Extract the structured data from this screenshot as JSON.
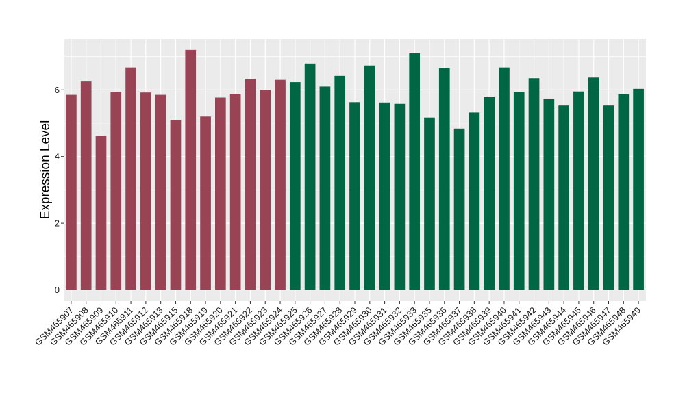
{
  "chart_data": {
    "type": "bar",
    "title": "",
    "xlabel": "",
    "ylabel": "Expression Level",
    "ylim": [
      0,
      7.5
    ],
    "yticks": [
      0,
      2,
      4,
      6
    ],
    "grid": true,
    "categories": [
      "GSM465907",
      "GSM465908",
      "GSM465909",
      "GSM465910",
      "GSM465911",
      "GSM465912",
      "GSM465913",
      "GSM465915",
      "GSM465918",
      "GSM465919",
      "GSM465920",
      "GSM465921",
      "GSM465922",
      "GSM465923",
      "GSM465924",
      "GSM465925",
      "GSM465926",
      "GSM465927",
      "GSM465928",
      "GSM465929",
      "GSM465930",
      "GSM465931",
      "GSM465932",
      "GSM465933",
      "GSM465935",
      "GSM465936",
      "GSM465937",
      "GSM465938",
      "GSM465939",
      "GSM465940",
      "GSM465941",
      "GSM465942",
      "GSM465943",
      "GSM465944",
      "GSM465945",
      "GSM465946",
      "GSM465947",
      "GSM465948",
      "GSM465949"
    ],
    "values": [
      5.85,
      6.25,
      4.62,
      5.93,
      6.67,
      5.92,
      5.85,
      5.1,
      7.2,
      5.2,
      5.77,
      5.88,
      6.33,
      6.0,
      6.3,
      6.23,
      6.79,
      6.1,
      6.42,
      5.63,
      6.73,
      5.62,
      5.58,
      7.1,
      5.17,
      6.65,
      4.84,
      5.32,
      5.8,
      6.67,
      5.93,
      6.35,
      5.74,
      5.53,
      5.95,
      6.37,
      5.53,
      5.87,
      6.03
    ],
    "groups": [
      0,
      0,
      0,
      0,
      0,
      0,
      0,
      0,
      0,
      0,
      0,
      0,
      0,
      0,
      0,
      1,
      1,
      1,
      1,
      1,
      1,
      1,
      1,
      1,
      1,
      1,
      1,
      1,
      1,
      1,
      1,
      1,
      1,
      1,
      1,
      1,
      1,
      1,
      1
    ],
    "group_colors": [
      "#994455",
      "#006644"
    ],
    "panel_background": "#ebebeb",
    "grid_color": "#ffffff"
  }
}
